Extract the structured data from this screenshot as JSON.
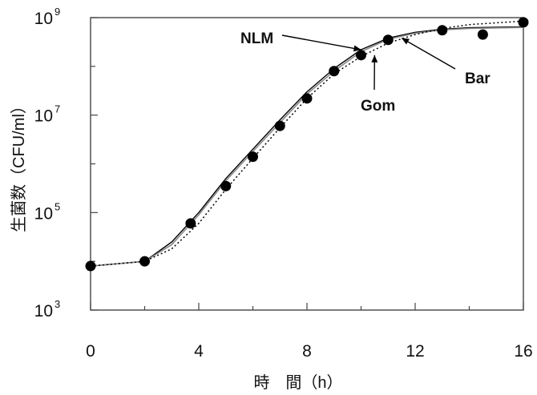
{
  "chart_data": {
    "type": "scatter",
    "title": "",
    "xlabel": "時　間（h）",
    "ylabel": "生菌数（CFU/ml）",
    "xlim": [
      0,
      16
    ],
    "ylim": [
      1000,
      1000000000
    ],
    "yscale": "log",
    "x_ticks": [
      0,
      4,
      8,
      12,
      16
    ],
    "y_ticks": [
      {
        "base": "10",
        "exp": "3",
        "value": 1000
      },
      {
        "base": "10",
        "exp": "5",
        "value": 100000
      },
      {
        "base": "10",
        "exp": "7",
        "value": 10000000
      },
      {
        "base": "10",
        "exp": "9",
        "value": 1000000000
      }
    ],
    "grid": false,
    "series": [
      {
        "style": "markers",
        "color": "#000000",
        "x": [
          0,
          2,
          3.7,
          5,
          6,
          7,
          8,
          9,
          10,
          11,
          13,
          14.5,
          16
        ],
        "y": [
          8000,
          10000,
          60000,
          350000,
          1400000,
          6000000,
          22000000,
          80000000,
          170000000,
          350000000,
          550000000,
          450000000,
          800000000
        ]
      },
      {
        "name": "NLM",
        "style": "solid",
        "color": "#000000",
        "x": [
          0,
          2,
          3,
          4,
          5,
          6,
          7,
          8,
          9,
          10,
          11,
          12,
          13,
          14,
          16
        ],
        "y": [
          8000,
          10000,
          25000,
          100000,
          500000,
          2000000,
          8000000,
          30000000,
          90000000,
          220000000,
          380000000,
          500000000,
          580000000,
          620000000,
          650000000
        ]
      },
      {
        "name": "Bar",
        "style": "solid-gray",
        "color": "#888888",
        "x": [
          0,
          2,
          3,
          4,
          5,
          6,
          7,
          8,
          9,
          10,
          11,
          12,
          13,
          14,
          16
        ],
        "y": [
          8000,
          10000,
          22000,
          90000,
          450000,
          1800000,
          7000000,
          27000000,
          80000000,
          200000000,
          360000000,
          480000000,
          560000000,
          600000000,
          630000000
        ]
      },
      {
        "name": "Gom",
        "style": "dotted",
        "color": "#000000",
        "x": [
          0,
          2,
          3,
          4,
          5,
          6,
          7,
          8,
          9,
          10,
          11,
          12,
          13,
          14,
          16
        ],
        "y": [
          8000,
          10000,
          18000,
          60000,
          300000,
          1300000,
          5500000,
          22000000,
          70000000,
          160000000,
          300000000,
          450000000,
          600000000,
          720000000,
          850000000
        ]
      }
    ],
    "annotations": [
      {
        "text": "NLM",
        "target_x": 10.0,
        "target_y": 220000000
      },
      {
        "text": "Gom",
        "target_x": 10.5,
        "target_y": 170000000
      },
      {
        "text": "Bar",
        "target_x": 11.5,
        "target_y": 380000000
      }
    ]
  }
}
